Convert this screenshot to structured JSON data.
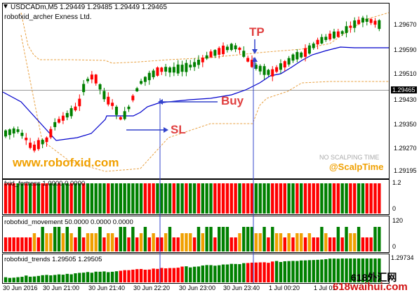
{
  "header": {
    "symbol_line": "USDCADm,M5  1.29449 1.29485 1.29449 1.29465",
    "indicator_line": "robofxid_archer Exness Ltd.",
    "menu_arrow": "▼"
  },
  "main": {
    "y_ticks": [
      "1.29670",
      "1.29590",
      "1.29510",
      "1.29430",
      "1.29350",
      "1.29270",
      "1.29195"
    ],
    "current_price": "1.29465",
    "annotations": {
      "tp": "TP",
      "buy": "Buy",
      "sl": "SL"
    },
    "watermark_left": "www.robofxid.com",
    "watermark_no_scalping": "NO SCALPING TIME",
    "watermark_scalp": "@ScalpTime"
  },
  "panes": {
    "fxid_fortress": {
      "label": "fxid_fortress 1.0000 0.0000",
      "ticks": [
        "1.2",
        "0"
      ]
    },
    "movement": {
      "label": "robofxid_movement 50.0000 0.0000 0.0000",
      "ticks": [
        "120",
        "0"
      ]
    },
    "trends": {
      "label": "robofxid_trends 1.29505 1.29505",
      "ticks": [
        "1.29734"
      ]
    }
  },
  "x_axis": {
    "labels": [
      "30 Jun 2016",
      "30 Jun 21:00",
      "30 Jun 21:40",
      "30 Jun 22:20",
      "30 Jun 23:00",
      "30 Jun 23:40",
      "1 Jul 00:20",
      "1 Jul 01"
    ]
  },
  "logo": {
    "text_top": "618外汇网",
    "text_bottom": "618waihui.com"
  },
  "colors": {
    "bull": "#008000",
    "bear": "#ff0000",
    "band": "#e8a040",
    "trail": "#0000cc",
    "annot": "#e04040",
    "arrow": "#3344cc",
    "orange": "#f0a000"
  }
}
